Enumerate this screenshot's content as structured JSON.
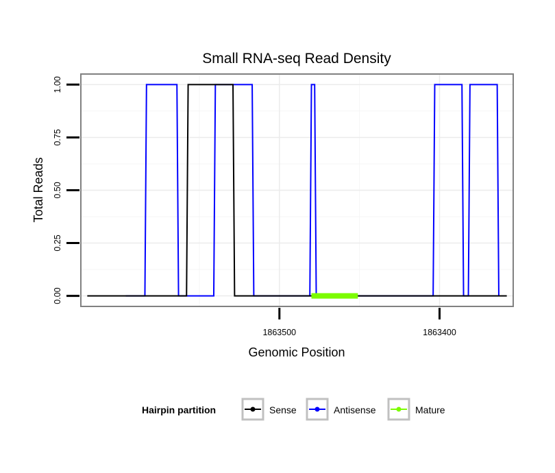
{
  "chart_data": {
    "type": "line",
    "title": "Small RNA-seq Read Density",
    "xlabel": "Genomic Position",
    "ylabel": "Total Reads",
    "xlim": [
      1863624,
      1863354
    ],
    "ylim": [
      -0.05,
      1.05
    ],
    "x_ticks": [
      {
        "value": 1863500,
        "label": "1863500"
      },
      {
        "value": 1863400,
        "label": "1863400"
      }
    ],
    "y_ticks": [
      {
        "value": 0.0,
        "label": "0.00"
      },
      {
        "value": 0.25,
        "label": "0.25"
      },
      {
        "value": 0.5,
        "label": "0.50"
      },
      {
        "value": 0.75,
        "label": "0.75"
      },
      {
        "value": 1.0,
        "label": "1.00"
      }
    ],
    "grid": true,
    "legend": {
      "title": "Hairpin partition",
      "position": "bottom",
      "entries": [
        "Sense",
        "Antisense",
        "Mature"
      ]
    },
    "series": [
      {
        "name": "Antisense",
        "color": "#0000ff",
        "x": [
          1863596,
          1863584,
          1863583,
          1863564,
          1863563,
          1863541,
          1863540,
          1863517,
          1863516,
          1863504,
          1863503,
          1863481,
          1863480,
          1863478,
          1863477,
          1863455,
          1863454,
          1863404,
          1863403,
          1863386,
          1863385,
          1863382,
          1863381,
          1863364,
          1863363
        ],
        "y": [
          0,
          0,
          1,
          1,
          0,
          0,
          1,
          1,
          0,
          0,
          0,
          0,
          1,
          1,
          0,
          0,
          0,
          0,
          1,
          1,
          0,
          0,
          1,
          1,
          0
        ]
      },
      {
        "name": "Sense",
        "color": "#000000",
        "x": [
          1863620,
          1863563,
          1863558,
          1863557,
          1863529,
          1863528,
          1863358
        ],
        "y": [
          0,
          0,
          0,
          1,
          1,
          0,
          0
        ]
      },
      {
        "name": "Mature",
        "color": "#7cfc00",
        "x": [
          1863480,
          1863451
        ],
        "y": [
          0,
          0
        ]
      }
    ]
  }
}
